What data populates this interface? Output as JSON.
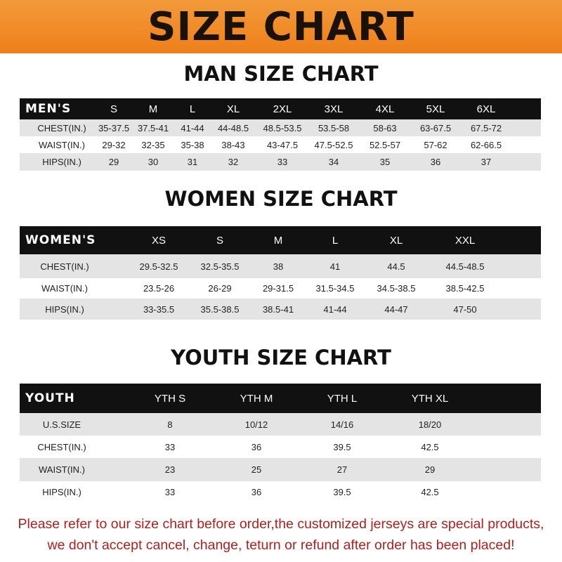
{
  "banner": {
    "title": "SIZE CHART"
  },
  "men": {
    "title": "MAN SIZE CHART",
    "header": [
      "MEN'S",
      "S",
      "M",
      "L",
      "XL",
      "2XL",
      "3XL",
      "4XL",
      "5XL",
      "6XL"
    ],
    "rows": [
      [
        "CHEST(IN.)",
        "35-37.5",
        "37.5-41",
        "41-44",
        "44-48.5",
        "48.5-53.5",
        "53.5-58",
        "58-63",
        "63-67.5",
        "67.5-72"
      ],
      [
        "WAIST(IN.)",
        "29-32",
        "32-35",
        "35-38",
        "38-43",
        "43-47.5",
        "47.5-52.5",
        "52.5-57",
        "57-62",
        "62-66.5"
      ],
      [
        "HIPS(IN.)",
        "29",
        "30",
        "31",
        "32",
        "33",
        "34",
        "35",
        "36",
        "37"
      ]
    ]
  },
  "women": {
    "title": "WOMEN SIZE CHART",
    "header": [
      "WOMEN'S",
      "XS",
      "S",
      "M",
      "L",
      "XL",
      "XXL"
    ],
    "rows": [
      [
        "CHEST(IN.)",
        "29.5-32.5",
        "32.5-35.5",
        "38",
        "41",
        "44.5",
        "44.5-48.5"
      ],
      [
        "WAIST(IN.)",
        "23.5-26",
        "26-29",
        "29-31.5",
        "31.5-34.5",
        "34.5-38.5",
        "38.5-42.5"
      ],
      [
        "HIPS(IN.)",
        "33-35.5",
        "35.5-38.5",
        "38.5-41",
        "41-44",
        "44-47",
        "47-50"
      ]
    ]
  },
  "youth": {
    "title": "YOUTH SIZE CHART",
    "header": [
      "YOUTH",
      "YTH S",
      "YTH M",
      "YTH L",
      "YTH XL"
    ],
    "rows": [
      [
        "U.S.SIZE",
        "8",
        "10/12",
        "14/16",
        "18/20"
      ],
      [
        "CHEST(IN.)",
        "33",
        "36",
        "39.5",
        "42.5"
      ],
      [
        "WAIST(IN.)",
        "23",
        "25",
        "27",
        "29"
      ],
      [
        "HIPS(IN.)",
        "33",
        "36",
        "39.5",
        "42.5"
      ]
    ]
  },
  "notice": {
    "line1": "Please refer to our size chart before order,the customized jerseys are special products,",
    "line2": "we don't accept cancel, change, teturn or refund after order has been placed!"
  },
  "colors": {
    "banner": "#ee7f1a",
    "header_row": "#111111",
    "notice": "#b0201f"
  }
}
